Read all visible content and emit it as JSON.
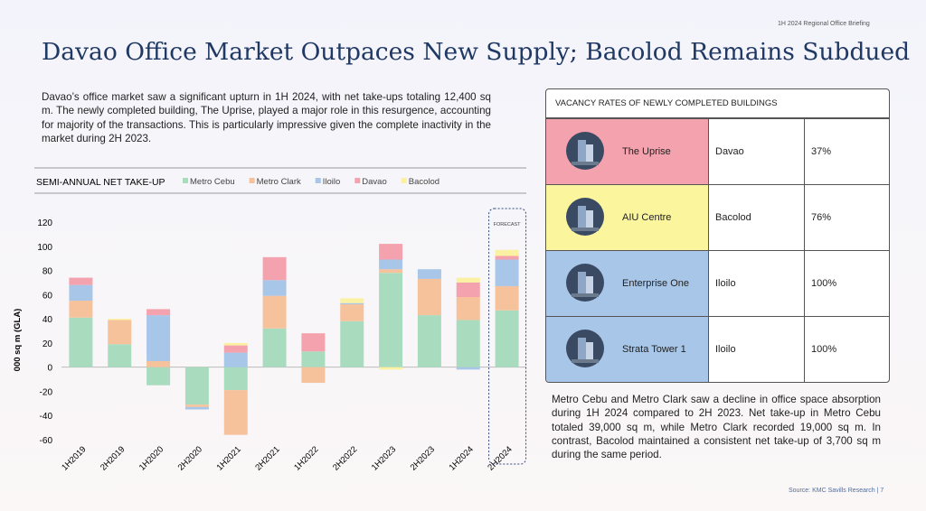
{
  "header_note": "1H  2024 Regional Office Briefing",
  "title": "Davao Office Market Outpaces New Supply; Bacolod Remains Subdued",
  "intro": "Davao’s office market saw a significant upturn in 1H 2024, with net take-ups totaling 12,400 sq m. The newly completed building, The Uprise, played a major role in this resurgence, accounting for majority of the transactions. This is particularly impressive given the complete inactivity in the market during  2H 2023.",
  "chart_data": {
    "type": "bar",
    "stacked": true,
    "title": "SEMI-ANNUAL NET TAKE-UP",
    "ylabel": "000 sq m (GLA)",
    "categories": [
      "1H2019",
      "2H2019",
      "1H2020",
      "2H2020",
      "1H2021",
      "2H2021",
      "1H2022",
      "2H2022",
      "1H2023",
      "2H2023",
      "1H2024",
      "2H2024"
    ],
    "series": [
      {
        "name": "Metro Cebu",
        "color": "#a9dcbf",
        "values": [
          41,
          19,
          -15,
          -31,
          -19,
          32,
          13,
          38,
          78,
          43,
          39,
          47
        ]
      },
      {
        "name": "Metro Clark",
        "color": "#f6c29b",
        "values": [
          14,
          20,
          5,
          -2,
          -37,
          27,
          -13,
          14,
          3,
          30,
          19,
          20
        ]
      },
      {
        "name": "Iloilo",
        "color": "#a8c6e8",
        "values": [
          13,
          0,
          38,
          -2,
          12,
          13,
          0,
          1,
          8,
          8,
          -2,
          22
        ]
      },
      {
        "name": "Davao",
        "color": "#f4a2ae",
        "values": [
          6,
          0,
          5,
          0,
          6,
          19,
          15,
          0,
          13,
          0,
          12,
          3
        ]
      },
      {
        "name": "Bacolod",
        "color": "#fbf1a2",
        "values": [
          0,
          1,
          0,
          0,
          2,
          0,
          0,
          4,
          -2,
          0,
          4,
          5
        ]
      }
    ],
    "ylim": [
      -60,
      120
    ],
    "yticks": [
      -60,
      -40,
      -20,
      0,
      20,
      40,
      60,
      80,
      100,
      120
    ],
    "annotation": "FORECAST"
  },
  "table": {
    "title": "VACANCY RATES OF NEWLY COMPLETED BUILDINGS",
    "rows": [
      [
        "The Uprise",
        "Davao",
        "37%"
      ],
      [
        "AIU Centre",
        "Bacolod",
        "76%"
      ],
      [
        "Enterprise One",
        "Iloilo",
        "100%"
      ],
      [
        "Strata Tower 1",
        "Iloilo",
        "100%"
      ]
    ]
  },
  "summary": "Metro Cebu and Metro Clark saw a decline in office space absorption during 1H 2024 compared to 2H 2023. Net take-up in Metro Cebu totaled 39,000 sq m, while Metro Clark recorded 19,000 sq m. In contrast, Bacolod maintained a consistent net take-up of 3,700 sq m during the same period.",
  "source": "Source: KMC Savills Research | 7"
}
